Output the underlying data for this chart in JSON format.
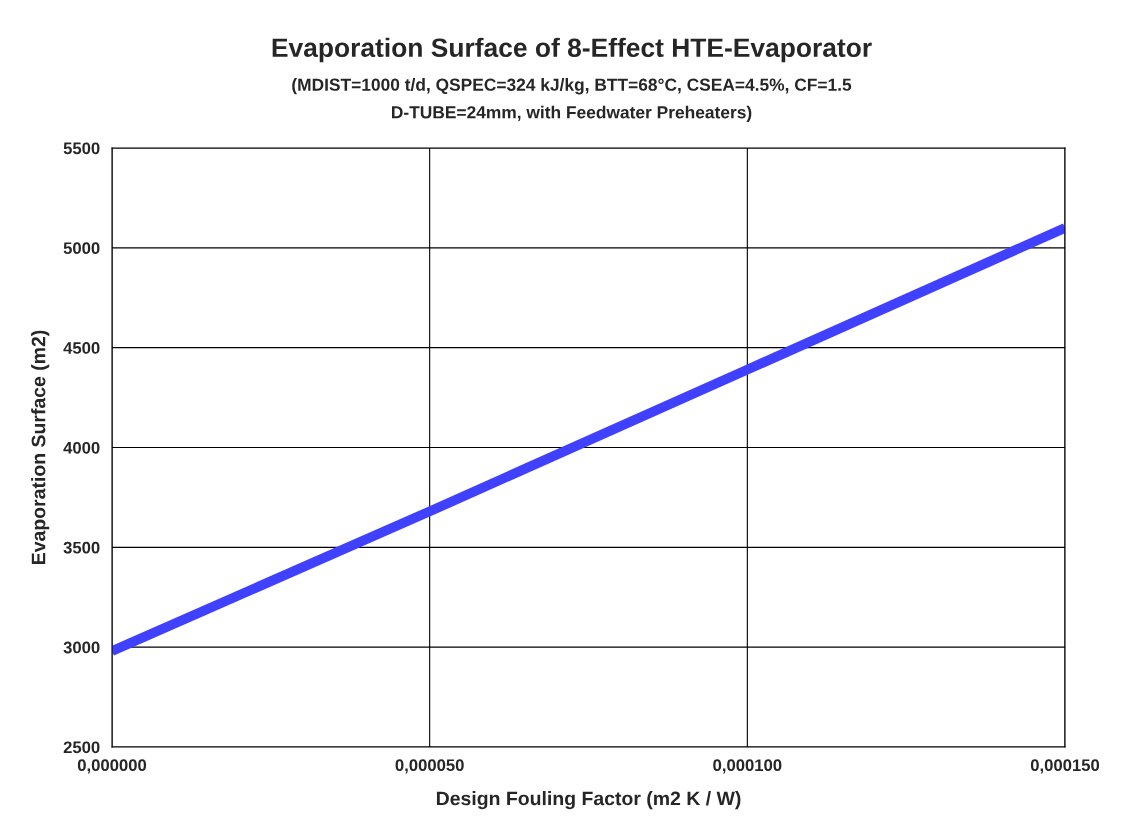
{
  "chart_data": {
    "type": "line",
    "title": "Evaporation Surface of 8-Effect HTE-Evaporator",
    "subtitle": "(MDIST=1000 t/d, QSPEC=324 kJ/kg, BTT=68°C, CSEA=4.5%, CF=1.5\nD-TUBE=24mm, with Feedwater Preheaters)",
    "xlabel": "Design Fouling Factor (m2 K / W)",
    "ylabel": "Evaporation Surface (m2)",
    "x": [
      0,
      5e-05,
      0.0001,
      0.00015
    ],
    "series": [
      {
        "color": "#4040ff",
        "values": [
          2980,
          3680,
          4390,
          5100
        ]
      }
    ],
    "xlim": [
      0,
      0.00015
    ],
    "xticks": [
      {
        "value": 0,
        "label": "0,000000"
      },
      {
        "value": 5e-05,
        "label": "0,000050"
      },
      {
        "value": 0.0001,
        "label": "0,000100"
      },
      {
        "value": 0.00015,
        "label": "0,000150"
      }
    ],
    "ylim": [
      2500,
      5500
    ],
    "yticks": [
      2500,
      3000,
      3500,
      4000,
      4500,
      5000,
      5500
    ],
    "grid": true,
    "legend": false,
    "marker": "none",
    "line_style": "solid"
  }
}
